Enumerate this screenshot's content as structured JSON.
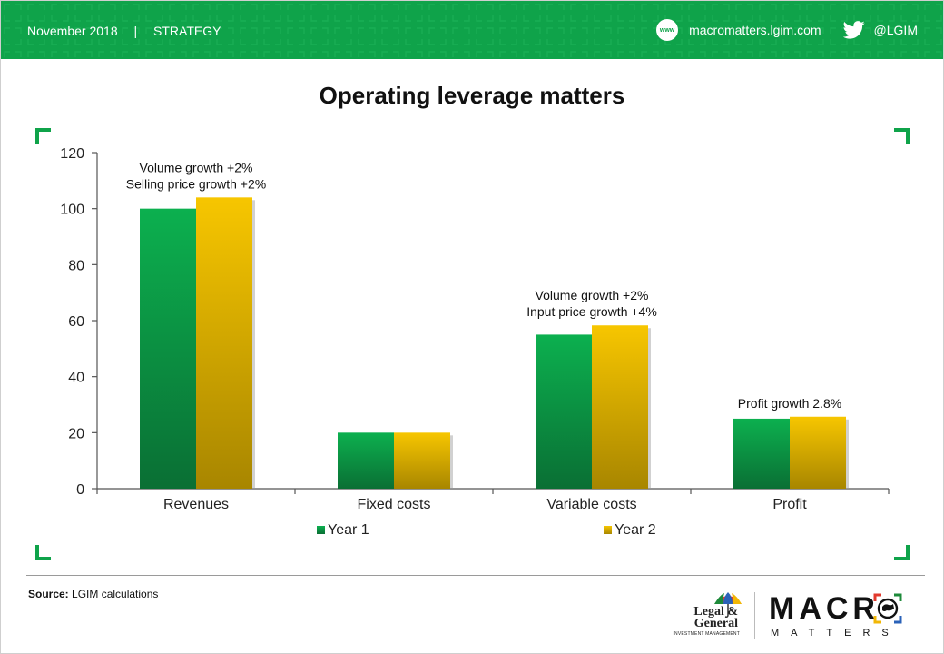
{
  "header": {
    "date": "November 2018",
    "separator": "|",
    "section": "STRATEGY",
    "website": "macromatters.lgim.com",
    "www_label": "www",
    "twitter": "@LGIM",
    "icons": [
      "www-icon",
      "twitter-icon"
    ]
  },
  "colors": {
    "header_green": "#0fa34a",
    "year1_top": "#0cb04f",
    "year1_bottom": "#0a6f34",
    "year2_top": "#f7c600",
    "year2_bottom": "#a88600",
    "corner_green": "#0fa34a"
  },
  "chart_data": {
    "type": "bar",
    "title": "Operating leverage matters",
    "categories": [
      "Revenues",
      "Fixed costs",
      "Variable costs",
      "Profit"
    ],
    "series": [
      {
        "name": "Year 1",
        "values": [
          100,
          20,
          55,
          25
        ]
      },
      {
        "name": "Year 2",
        "values": [
          104,
          20,
          58.3,
          25.7
        ]
      }
    ],
    "ylim": [
      0,
      120
    ],
    "yticks": [
      0,
      20,
      40,
      60,
      80,
      100,
      120
    ],
    "grid": false,
    "legend": "bottom",
    "annotations": [
      {
        "category": "Revenues",
        "lines": [
          "Volume growth +2%",
          "Selling price growth +2%"
        ]
      },
      {
        "category": "Variable costs",
        "lines": [
          "Volume growth +2%",
          "Input price growth +4%"
        ]
      },
      {
        "category": "Profit",
        "lines": [
          "Profit growth 2.8%"
        ]
      }
    ]
  },
  "footer": {
    "source_label": "Source:",
    "source_text": "LGIM calculations",
    "lg_line1": "Legal &",
    "lg_line2": "General",
    "lg_sub": "INVESTMENT MANAGEMENT",
    "brand_macro": "MACR",
    "brand_matters": "MATTERS"
  }
}
